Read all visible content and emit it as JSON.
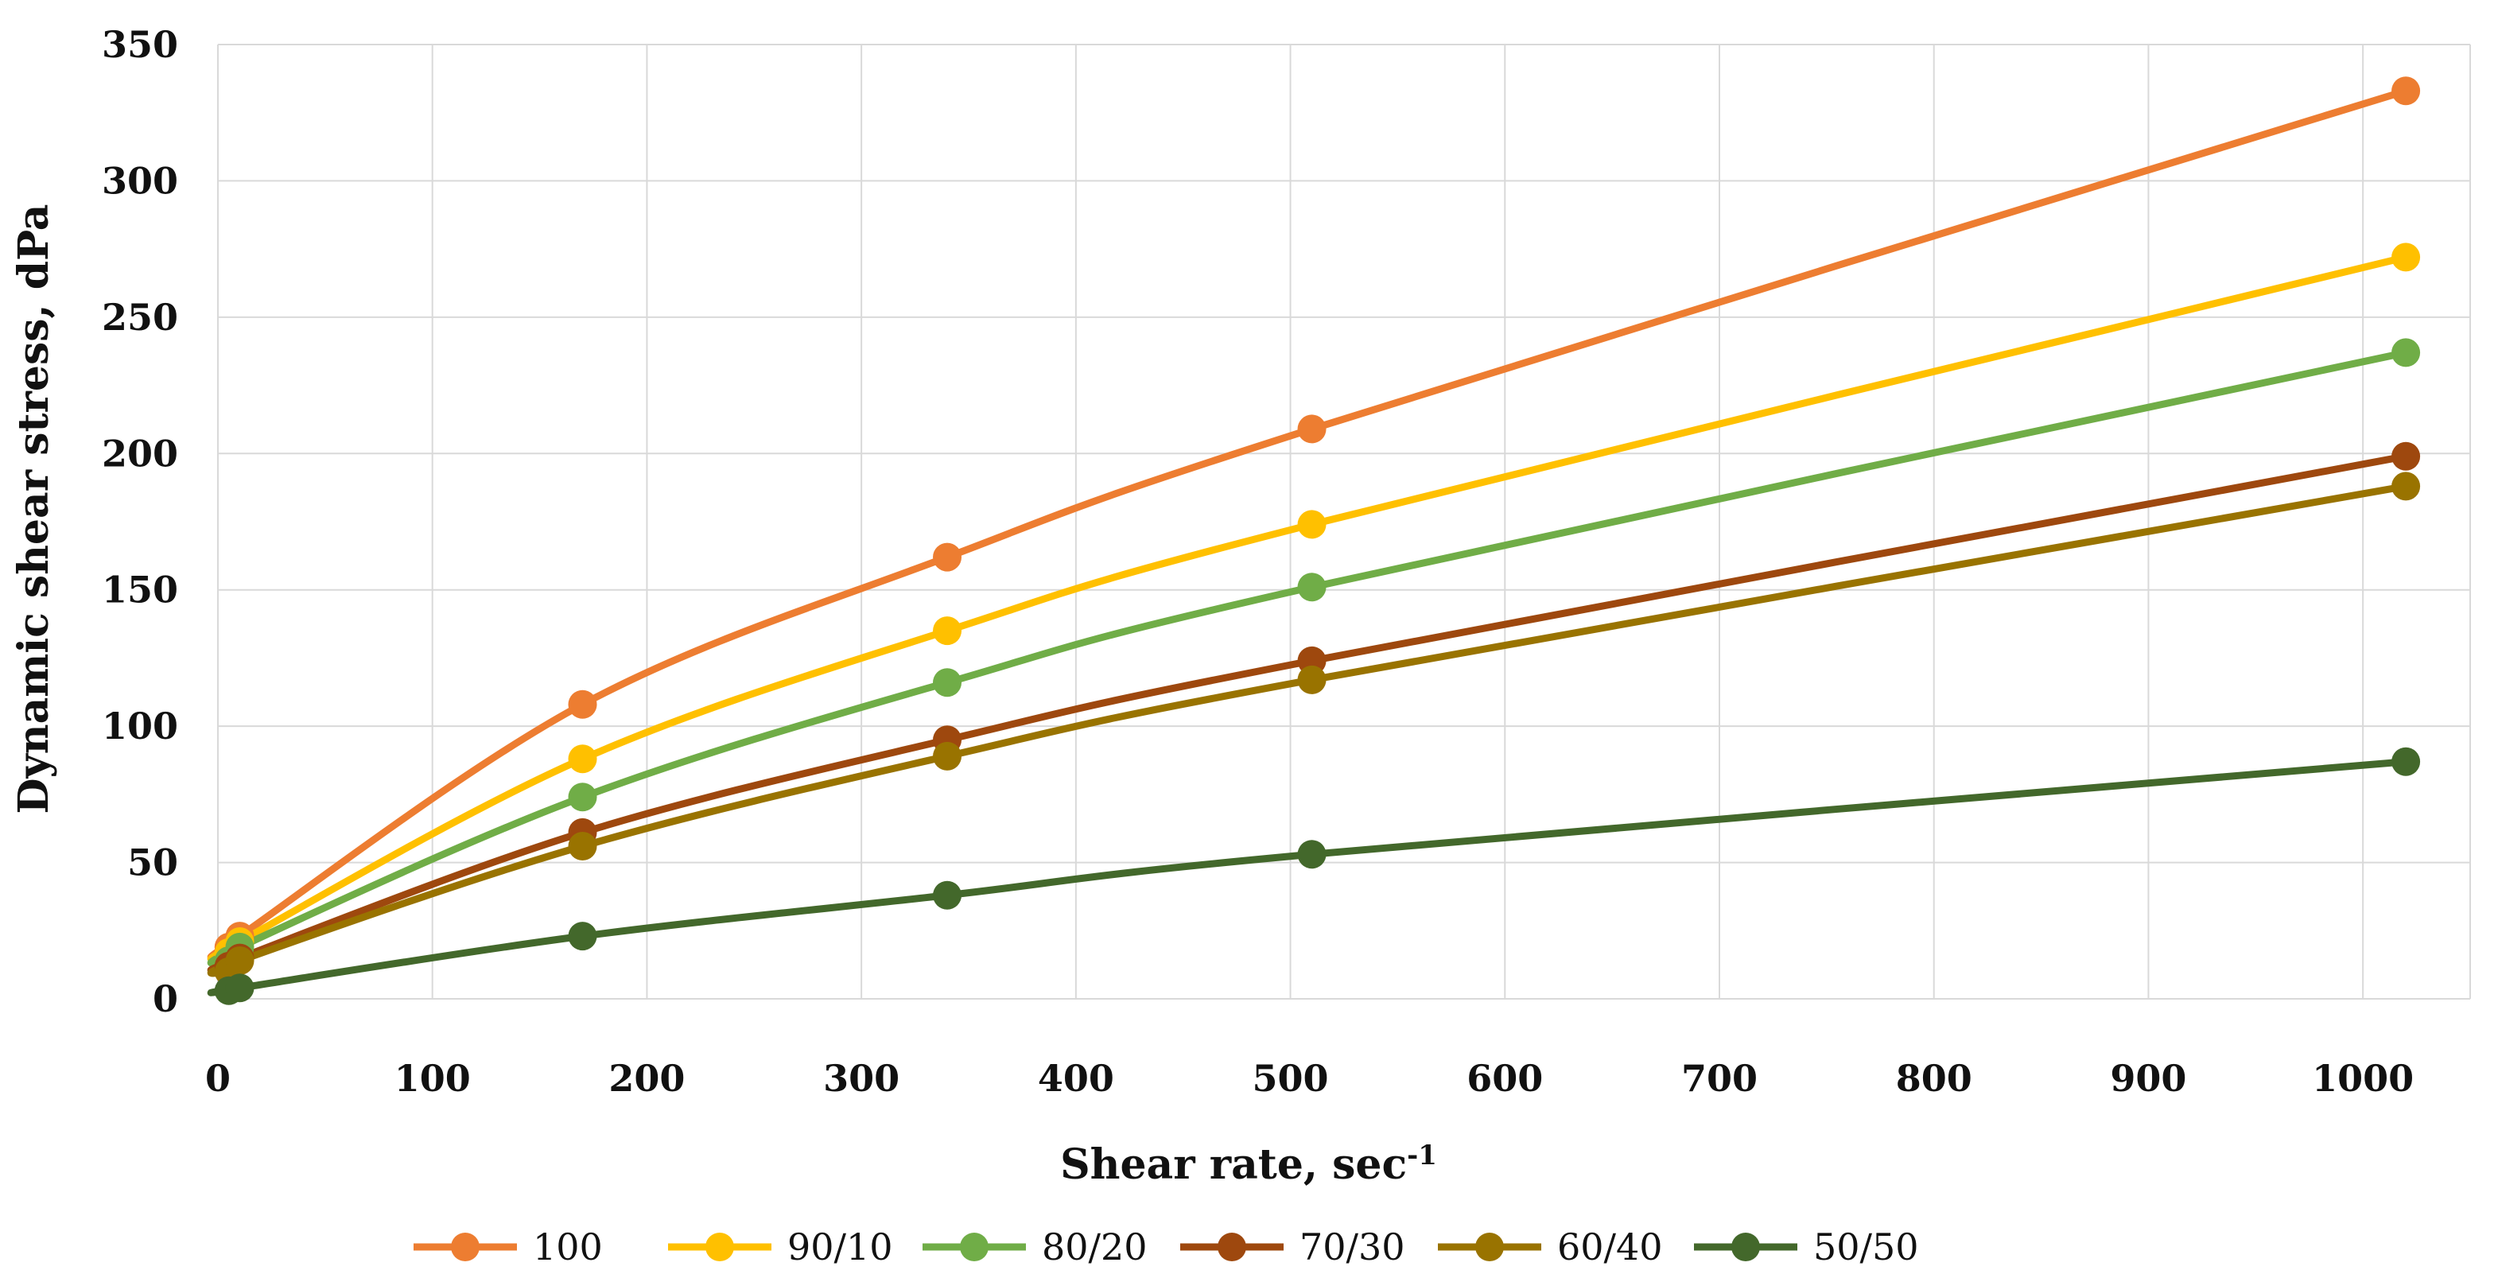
{
  "chart_data": {
    "type": "line",
    "title": "",
    "xlabel": "Shear rate, sec",
    "xlabel_superscript": "-1",
    "ylabel": "Dynamic shear stress, dPa",
    "xlim": [
      0,
      1050
    ],
    "ylim": [
      0,
      350
    ],
    "xticks": [
      0,
      100,
      200,
      300,
      400,
      500,
      600,
      700,
      800,
      900,
      1000
    ],
    "yticks": [
      0,
      50,
      100,
      150,
      200,
      250,
      300,
      350
    ],
    "grid": true,
    "legend_position": "bottom",
    "x": [
      5.1,
      10.2,
      170,
      340,
      510,
      1020
    ],
    "series": [
      {
        "name": "100",
        "color": "#ED7D31",
        "values": [
          19,
          23,
          108,
          162,
          209,
          333
        ]
      },
      {
        "name": "90/10",
        "color": "#FFC000",
        "values": [
          17,
          21,
          88,
          135,
          174,
          272
        ]
      },
      {
        "name": "80/20",
        "color": "#70AD47",
        "values": [
          14,
          19,
          74,
          116,
          151,
          237
        ]
      },
      {
        "name": "70/30",
        "color": "#9E480E",
        "values": [
          12,
          15,
          61,
          95,
          124,
          199
        ]
      },
      {
        "name": "60/40",
        "color": "#997300",
        "values": [
          10,
          14,
          56,
          89,
          117,
          188
        ]
      },
      {
        "name": "50/50",
        "color": "#43682B",
        "values": [
          3,
          4,
          23,
          38,
          53,
          87
        ]
      }
    ]
  }
}
